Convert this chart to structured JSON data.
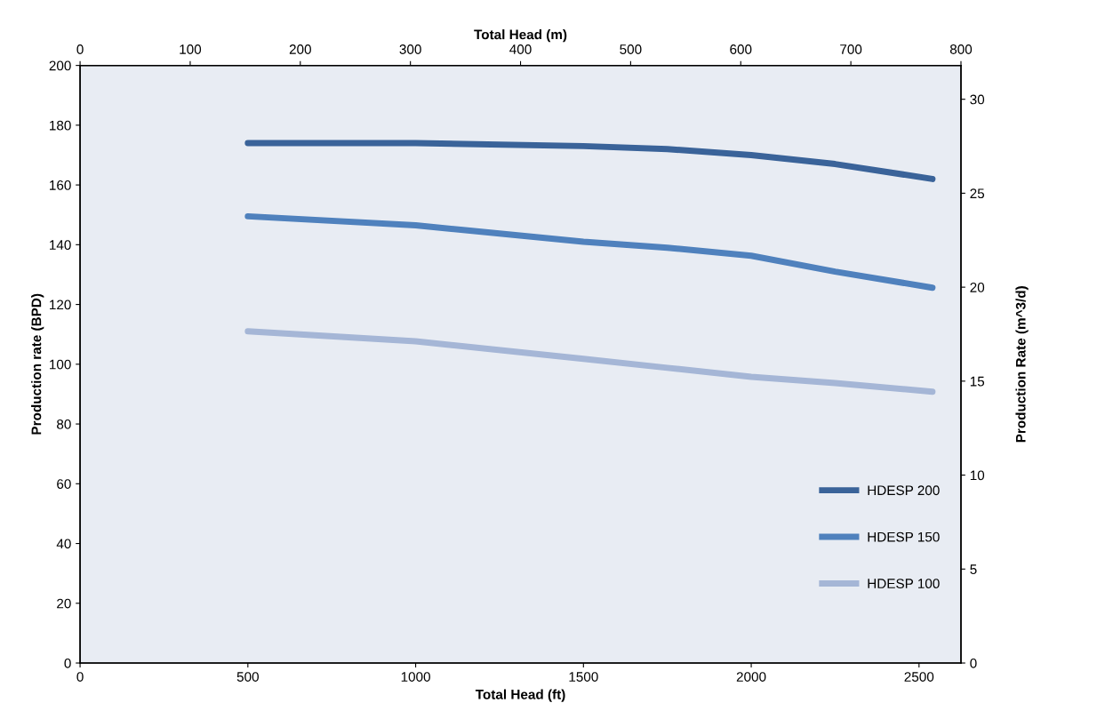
{
  "chart_data": {
    "type": "line",
    "xlabel": "Total Head (ft)",
    "ylabel": "Production rate (BPD)",
    "y2label": "Production Rate (m^3/d)",
    "x2label": "Total Head (m)",
    "xlim": [
      0,
      2625
    ],
    "xticks": [
      0,
      500,
      1000,
      1500,
      2000,
      2500
    ],
    "x2lim": [
      0,
      800
    ],
    "x2ticks": [
      0,
      100,
      200,
      300,
      400,
      500,
      600,
      700,
      800
    ],
    "ylim": [
      0,
      200
    ],
    "yticks": [
      0,
      20,
      40,
      60,
      80,
      100,
      120,
      140,
      160,
      180,
      200
    ],
    "y2lim": [
      0,
      31.8
    ],
    "y2ticks": [
      0,
      5,
      10,
      15,
      20,
      25,
      30
    ],
    "series": [
      {
        "name": "HDESP 200",
        "color": "#3a6399",
        "x": [
          500,
          1000,
          1500,
          1750,
          2000,
          2250,
          2540
        ],
        "values": [
          174,
          174,
          173,
          172,
          170,
          167,
          162
        ]
      },
      {
        "name": "HDESP 150",
        "color": "#4f81bd",
        "x": [
          500,
          1000,
          1500,
          1750,
          2000,
          2250,
          2540
        ],
        "values": [
          149.5,
          146.5,
          141,
          139,
          136.3,
          131,
          125.6
        ]
      },
      {
        "name": "HDESP 100",
        "color": "#a5b6d6",
        "x": [
          500,
          1000,
          1500,
          1750,
          2000,
          2250,
          2540
        ],
        "values": [
          111,
          107.7,
          101.8,
          98.8,
          95.8,
          93.7,
          90.8
        ]
      }
    ],
    "legend": "bottom right",
    "grid": false,
    "marker": "none",
    "line_style": "solid"
  }
}
